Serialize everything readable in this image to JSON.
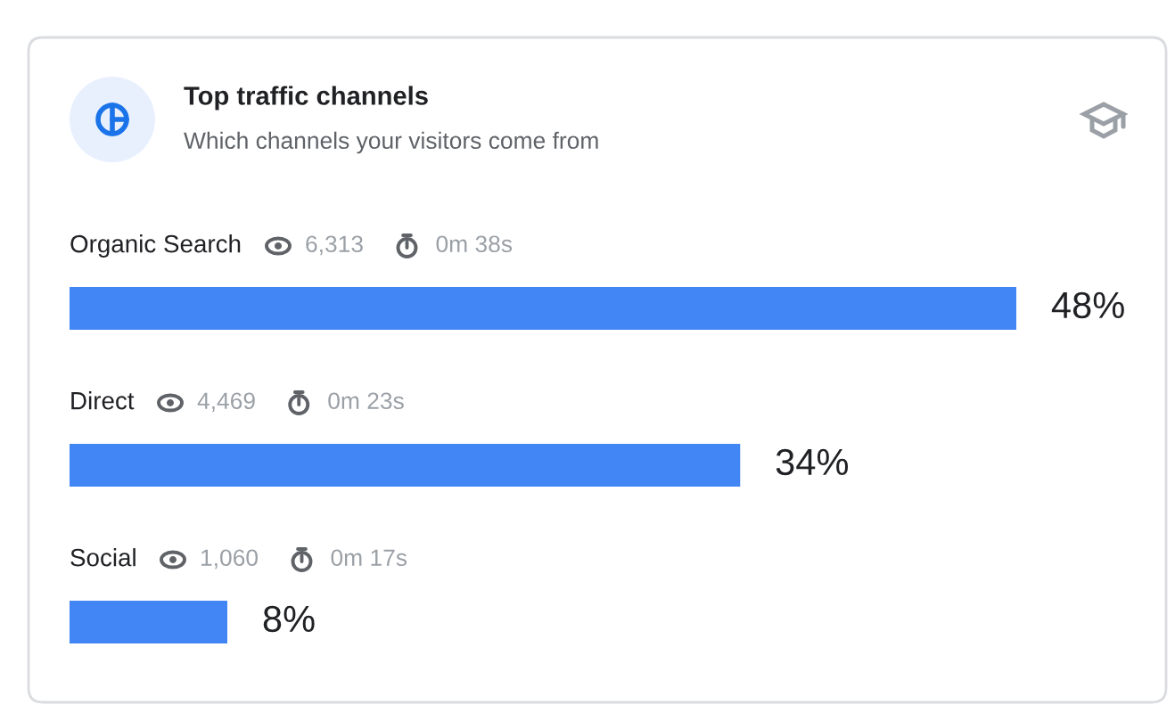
{
  "chart_data": {
    "type": "bar",
    "orientation": "horizontal",
    "title": "Top traffic channels",
    "subtitle": "Which channels your visitors come from",
    "categories": [
      "Organic Search",
      "Direct",
      "Social"
    ],
    "values": [
      48,
      34,
      8
    ],
    "value_labels": [
      "48%",
      "34%",
      "8%"
    ],
    "color": "#4285f4",
    "annotations": [
      "6,313",
      "0m 38s",
      "4,469",
      "0m 23s",
      "1,060",
      "0m 17s"
    ]
  }
}
